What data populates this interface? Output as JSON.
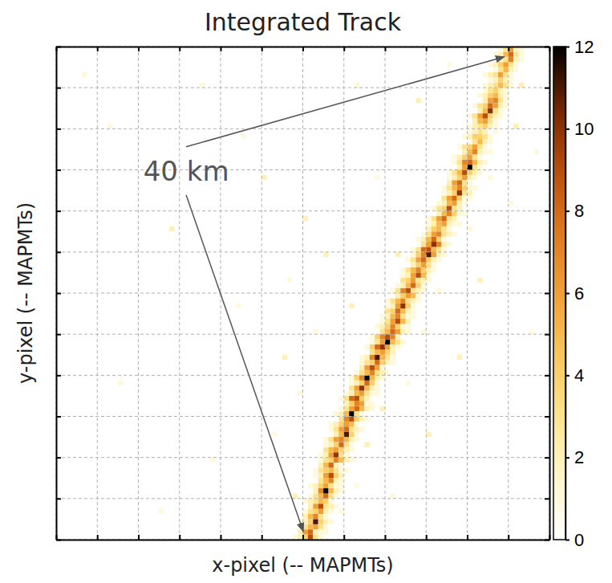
{
  "chart_data": {
    "type": "heatmap",
    "title": "Integrated Track",
    "x_label": "x-pixel (-- MAPMTs)",
    "y_label": "y-pixel (-- MAPMTs)",
    "xlim": [
      0,
      96
    ],
    "ylim": [
      0,
      96
    ],
    "xticks": [
      0,
      8,
      16,
      24,
      32,
      40,
      48,
      56,
      64,
      72,
      80,
      88,
      96
    ],
    "yticks": [
      0,
      8,
      16,
      24,
      32,
      40,
      48,
      56,
      64,
      72,
      80,
      88,
      96
    ],
    "grid": true,
    "tick_labels": false,
    "zlim": [
      0,
      12
    ],
    "zticks": [
      0,
      2,
      4,
      6,
      8,
      10,
      12
    ],
    "rows": [
      {
        "x0": 46,
        "values": [
          1,
          2,
          4,
          9,
          3,
          1,
          0
        ]
      },
      {
        "x0": 46,
        "values": [
          0,
          2,
          6,
          8,
          2,
          1,
          1
        ]
      },
      {
        "x0": 47,
        "values": [
          1,
          3,
          5,
          6,
          3,
          1,
          0
        ]
      },
      {
        "x0": 47,
        "values": [
          1,
          2,
          4,
          11,
          4,
          2,
          1
        ]
      },
      {
        "x0": 47,
        "values": [
          0,
          2,
          5,
          7,
          3,
          1,
          0
        ]
      },
      {
        "x0": 48,
        "values": [
          1,
          3,
          4,
          6,
          2,
          1,
          0
        ]
      },
      {
        "x0": 48,
        "values": [
          0,
          2,
          6,
          9,
          3,
          2,
          1
        ]
      },
      {
        "x0": 48,
        "values": [
          1,
          2,
          3,
          5,
          4,
          1,
          0
        ]
      },
      {
        "x0": 49,
        "values": [
          1,
          3,
          5,
          8,
          3,
          1,
          0
        ]
      },
      {
        "x0": 49,
        "values": [
          0,
          2,
          7,
          12,
          5,
          2,
          1
        ]
      },
      {
        "x0": 49,
        "values": [
          1,
          2,
          4,
          6,
          3,
          1,
          1
        ]
      },
      {
        "x0": 50,
        "values": [
          0,
          3,
          5,
          7,
          2,
          1,
          0
        ]
      },
      {
        "x0": 50,
        "values": [
          1,
          2,
          6,
          9,
          4,
          2,
          0
        ]
      },
      {
        "x0": 50,
        "values": [
          1,
          3,
          4,
          5,
          3,
          1,
          1
        ]
      },
      {
        "x0": 50,
        "values": [
          0,
          2,
          5,
          8,
          2,
          1,
          0
        ]
      },
      {
        "x0": 51,
        "values": [
          1,
          3,
          4,
          7,
          5,
          2,
          1
        ]
      },
      {
        "x0": 51,
        "values": [
          1,
          2,
          6,
          10,
          3,
          1,
          0
        ]
      },
      {
        "x0": 51,
        "values": [
          0,
          3,
          5,
          6,
          4,
          2,
          1
        ]
      },
      {
        "x0": 52,
        "values": [
          1,
          2,
          4,
          8,
          3,
          1,
          0
        ]
      },
      {
        "x0": 52,
        "values": [
          1,
          3,
          6,
          7,
          5,
          2,
          1
        ]
      },
      {
        "x0": 53,
        "values": [
          0,
          2,
          5,
          11,
          4,
          1,
          0
        ]
      },
      {
        "x0": 53,
        "values": [
          1,
          3,
          6,
          8,
          3,
          2,
          1
        ]
      },
      {
        "x0": 53,
        "values": [
          1,
          2,
          4,
          6,
          5,
          1,
          0
        ]
      },
      {
        "x0": 54,
        "values": [
          0,
          3,
          7,
          9,
          4,
          2,
          1
        ]
      },
      {
        "x0": 54,
        "values": [
          1,
          2,
          5,
          12,
          3,
          1,
          0
        ]
      },
      {
        "x0": 55,
        "values": [
          1,
          3,
          6,
          8,
          5,
          2,
          1
        ]
      },
      {
        "x0": 55,
        "values": [
          0,
          2,
          4,
          7,
          6,
          1,
          1
        ]
      },
      {
        "x0": 55,
        "values": [
          1,
          3,
          8,
          9,
          4,
          2,
          0
        ]
      },
      {
        "x0": 56,
        "values": [
          1,
          2,
          5,
          6,
          3,
          1,
          1
        ]
      },
      {
        "x0": 56,
        "values": [
          0,
          3,
          6,
          10,
          5,
          2,
          1
        ]
      },
      {
        "x0": 57,
        "values": [
          1,
          2,
          4,
          8,
          4,
          1,
          0
        ]
      },
      {
        "x0": 57,
        "values": [
          1,
          4,
          7,
          12,
          5,
          2,
          1
        ]
      },
      {
        "x0": 58,
        "values": [
          1,
          3,
          5,
          7,
          3,
          2,
          1
        ]
      },
      {
        "x0": 58,
        "values": [
          0,
          2,
          6,
          9,
          6,
          1,
          0
        ]
      },
      {
        "x0": 59,
        "values": [
          1,
          3,
          4,
          8,
          4,
          2,
          1
        ]
      },
      {
        "x0": 59,
        "values": [
          1,
          2,
          7,
          11,
          5,
          3,
          1
        ]
      },
      {
        "x0": 60,
        "values": [
          0,
          3,
          5,
          6,
          4,
          2,
          0
        ]
      },
      {
        "x0": 60,
        "values": [
          1,
          4,
          8,
          10,
          6,
          2,
          1
        ]
      },
      {
        "x0": 61,
        "values": [
          1,
          3,
          6,
          12,
          5,
          3,
          1
        ]
      },
      {
        "x0": 61,
        "values": [
          1,
          4,
          7,
          9,
          7,
          2,
          0
        ]
      },
      {
        "x0": 62,
        "values": [
          0,
          3,
          5,
          8,
          6,
          2,
          1
        ]
      },
      {
        "x0": 62,
        "values": [
          1,
          2,
          4,
          7,
          4,
          1,
          1
        ]
      },
      {
        "x0": 63,
        "values": [
          1,
          3,
          6,
          9,
          5,
          2,
          0
        ]
      },
      {
        "x0": 63,
        "values": [
          1,
          2,
          5,
          7,
          3,
          1,
          1
        ]
      },
      {
        "x0": 63,
        "values": [
          0,
          3,
          4,
          8,
          5,
          2,
          1
        ]
      },
      {
        "x0": 64,
        "values": [
          1,
          2,
          6,
          10,
          4,
          1,
          0
        ]
      },
      {
        "x0": 64,
        "values": [
          1,
          3,
          5,
          7,
          3,
          2,
          1
        ]
      },
      {
        "x0": 65,
        "values": [
          0,
          2,
          4,
          6,
          5,
          1,
          0
        ]
      },
      {
        "x0": 65,
        "values": [
          1,
          3,
          7,
          9,
          3,
          2,
          1
        ]
      },
      {
        "x0": 66,
        "values": [
          1,
          2,
          5,
          8,
          4,
          1,
          0
        ]
      },
      {
        "x0": 66,
        "values": [
          0,
          3,
          4,
          6,
          3,
          2,
          1
        ]
      },
      {
        "x0": 67,
        "values": [
          1,
          2,
          6,
          9,
          5,
          1,
          0
        ]
      },
      {
        "x0": 67,
        "values": [
          1,
          3,
          5,
          7,
          4,
          2,
          1
        ]
      },
      {
        "x0": 68,
        "values": [
          0,
          2,
          4,
          6,
          3,
          1,
          0
        ]
      },
      {
        "x0": 68,
        "values": [
          1,
          3,
          6,
          8,
          4,
          2,
          1
        ]
      },
      {
        "x0": 69,
        "values": [
          1,
          4,
          7,
          11,
          6,
          2,
          1
        ]
      },
      {
        "x0": 69,
        "values": [
          1,
          3,
          8,
          9,
          5,
          3,
          1
        ]
      },
      {
        "x0": 70,
        "values": [
          0,
          3,
          6,
          10,
          7,
          2,
          1
        ]
      },
      {
        "x0": 70,
        "values": [
          1,
          2,
          5,
          8,
          4,
          1,
          0
        ]
      },
      {
        "x0": 71,
        "values": [
          1,
          3,
          6,
          7,
          3,
          2,
          1
        ]
      },
      {
        "x0": 71,
        "values": [
          0,
          2,
          4,
          5,
          3,
          1,
          0
        ]
      },
      {
        "x0": 72,
        "values": [
          1,
          2,
          5,
          6,
          2,
          1,
          1
        ]
      },
      {
        "x0": 72,
        "values": [
          1,
          3,
          6,
          8,
          3,
          2,
          0
        ]
      },
      {
        "x0": 73,
        "values": [
          0,
          2,
          5,
          7,
          4,
          1,
          1
        ]
      },
      {
        "x0": 73,
        "values": [
          1,
          3,
          4,
          9,
          3,
          2,
          0
        ]
      },
      {
        "x0": 74,
        "values": [
          1,
          2,
          5,
          6,
          2,
          1,
          0
        ]
      },
      {
        "x0": 74,
        "values": [
          0,
          3,
          6,
          8,
          4,
          1,
          1
        ]
      },
      {
        "x0": 75,
        "values": [
          1,
          2,
          4,
          10,
          3,
          2,
          0
        ]
      },
      {
        "x0": 75,
        "values": [
          1,
          3,
          5,
          7,
          4,
          1,
          1
        ]
      },
      {
        "x0": 75,
        "values": [
          0,
          2,
          6,
          8,
          3,
          1,
          0
        ]
      },
      {
        "x0": 76,
        "values": [
          1,
          2,
          4,
          6,
          2,
          1,
          0
        ]
      },
      {
        "x0": 76,
        "values": [
          1,
          3,
          5,
          9,
          4,
          2,
          1
        ]
      },
      {
        "x0": 77,
        "values": [
          0,
          2,
          6,
          12,
          3,
          1,
          0
        ]
      },
      {
        "x0": 77,
        "values": [
          1,
          3,
          7,
          8,
          5,
          2,
          1
        ]
      },
      {
        "x0": 77,
        "values": [
          1,
          2,
          4,
          6,
          3,
          1,
          0
        ]
      },
      {
        "x0": 78,
        "values": [
          0,
          2,
          5,
          7,
          2,
          1,
          1
        ]
      },
      {
        "x0": 78,
        "values": [
          1,
          3,
          4,
          6,
          3,
          1,
          0
        ]
      },
      {
        "x0": 79,
        "values": [
          0,
          1,
          3,
          5,
          2,
          1,
          0
        ]
      },
      {
        "x0": 79,
        "values": [
          1,
          2,
          4,
          4,
          3,
          1,
          0
        ]
      },
      {
        "x0": 79,
        "values": [
          0,
          1,
          2,
          3,
          2,
          0,
          1
        ]
      },
      {
        "x0": 80,
        "values": [
          1,
          2,
          3,
          4,
          2,
          1,
          0
        ]
      },
      {
        "x0": 80,
        "values": [
          0,
          2,
          5,
          6,
          3,
          1,
          0
        ]
      },
      {
        "x0": 80,
        "values": [
          1,
          3,
          6,
          9,
          4,
          2,
          1
        ]
      },
      {
        "x0": 81,
        "values": [
          0,
          2,
          5,
          10,
          3,
          1,
          0
        ]
      },
      {
        "x0": 81,
        "values": [
          1,
          3,
          4,
          8,
          6,
          2,
          1
        ]
      },
      {
        "x0": 82,
        "values": [
          0,
          2,
          6,
          7,
          3,
          1,
          0
        ]
      },
      {
        "x0": 82,
        "values": [
          1,
          2,
          4,
          5,
          2,
          1,
          0
        ]
      },
      {
        "x0": 82,
        "values": [
          0,
          1,
          3,
          4,
          2,
          1,
          0
        ]
      },
      {
        "x0": 83,
        "values": [
          1,
          2,
          3,
          5,
          3,
          1,
          0
        ]
      },
      {
        "x0": 83,
        "values": [
          0,
          1,
          2,
          4,
          2,
          1,
          0
        ]
      },
      {
        "x0": 83,
        "values": [
          1,
          2,
          3,
          6,
          3,
          1,
          0
        ]
      },
      {
        "x0": 84,
        "values": [
          0,
          1,
          3,
          5,
          2,
          1,
          0
        ]
      },
      {
        "x0": 84,
        "values": [
          1,
          2,
          4,
          6,
          3,
          1,
          0
        ]
      },
      {
        "x0": 85,
        "values": [
          0,
          2,
          3,
          7,
          2,
          1,
          0
        ]
      },
      {
        "x0": 85,
        "values": [
          1,
          2,
          5,
          8,
          3,
          1,
          0
        ]
      },
      {
        "x0": 85,
        "values": [
          0,
          1,
          3,
          6,
          2,
          1,
          0
        ]
      }
    ],
    "cells": [
      [
        10,
        80,
        1
      ],
      [
        22,
        60,
        2
      ],
      [
        30,
        15,
        1
      ],
      [
        35,
        45,
        1
      ],
      [
        40,
        70,
        2
      ],
      [
        42,
        20,
        1
      ],
      [
        44,
        35,
        2
      ],
      [
        45,
        50,
        1
      ],
      [
        46,
        8,
        2
      ],
      [
        47,
        28,
        1
      ],
      [
        48,
        62,
        2
      ],
      [
        50,
        40,
        1
      ],
      [
        52,
        55,
        2
      ],
      [
        55,
        5,
        1
      ],
      [
        57,
        45,
        2
      ],
      [
        58,
        10,
        1
      ],
      [
        60,
        18,
        2
      ],
      [
        62,
        70,
        1
      ],
      [
        63,
        25,
        2
      ],
      [
        65,
        8,
        1
      ],
      [
        66,
        55,
        2
      ],
      [
        68,
        30,
        1
      ],
      [
        70,
        85,
        2
      ],
      [
        71,
        40,
        1
      ],
      [
        72,
        20,
        2
      ],
      [
        74,
        48,
        1
      ],
      [
        76,
        92,
        1
      ],
      [
        78,
        35,
        2
      ],
      [
        80,
        60,
        1
      ],
      [
        82,
        50,
        2
      ],
      [
        84,
        70,
        1
      ],
      [
        89,
        80,
        2
      ],
      [
        88,
        65,
        1
      ],
      [
        90,
        88,
        2
      ],
      [
        92,
        40,
        1
      ],
      [
        93,
        75,
        1
      ],
      [
        12,
        30,
        1
      ],
      [
        5,
        90,
        1
      ],
      [
        20,
        5,
        1
      ],
      [
        28,
        88,
        1
      ],
      [
        58,
        88,
        1
      ],
      [
        36,
        78,
        1
      ]
    ],
    "annotations": [
      {
        "text": "40 km",
        "x": 25.3,
        "y": 71.4,
        "arrows": [
          [
            87.2,
            94
          ],
          [
            48.1,
            1.6
          ]
        ]
      }
    ]
  }
}
